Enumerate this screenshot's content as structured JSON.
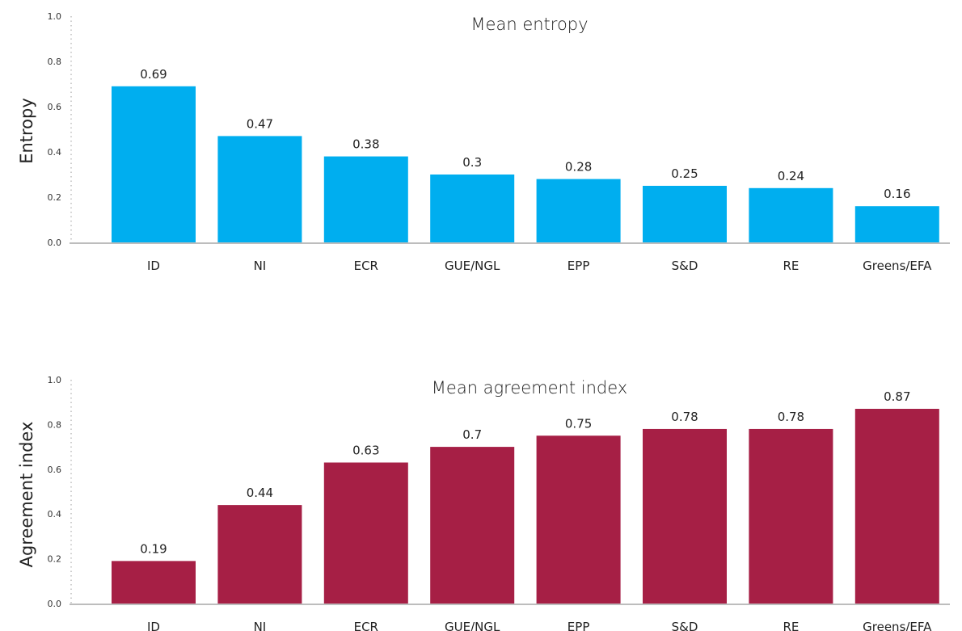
{
  "chart_data": [
    {
      "type": "bar",
      "title": "Mean entropy",
      "xlabel": "",
      "ylabel": "Entropy",
      "ylim": [
        0,
        1
      ],
      "yticks": [
        "0.0",
        "0.2",
        "0.4",
        "0.6",
        "0.8",
        "1.0"
      ],
      "categories": [
        "ID",
        "NI",
        "ECR",
        "GUE/NGL",
        "EPP",
        "S&D",
        "RE",
        "Greens/EFA"
      ],
      "values": [
        0.69,
        0.47,
        0.38,
        0.3,
        0.28,
        0.25,
        0.24,
        0.16
      ],
      "value_labels": [
        "0.69",
        "0.47",
        "0.38",
        "0.3",
        "0.28",
        "0.25",
        "0.24",
        "0.16"
      ],
      "color": "#00aeef",
      "grid": false
    },
    {
      "type": "bar",
      "title": "Mean agreement index",
      "xlabel": "",
      "ylabel": "Agreement index",
      "ylim": [
        0,
        1
      ],
      "yticks": [
        "0.0",
        "0.2",
        "0.4",
        "0.6",
        "0.8",
        "1.0"
      ],
      "categories": [
        "ID",
        "NI",
        "ECR",
        "GUE/NGL",
        "EPP",
        "S&D",
        "RE",
        "Greens/EFA"
      ],
      "values": [
        0.19,
        0.44,
        0.63,
        0.7,
        0.75,
        0.78,
        0.78,
        0.87
      ],
      "value_labels": [
        "0.19",
        "0.44",
        "0.63",
        "0.7",
        "0.75",
        "0.78",
        "0.78",
        "0.87"
      ],
      "color": "#a61f45",
      "grid": false
    }
  ]
}
